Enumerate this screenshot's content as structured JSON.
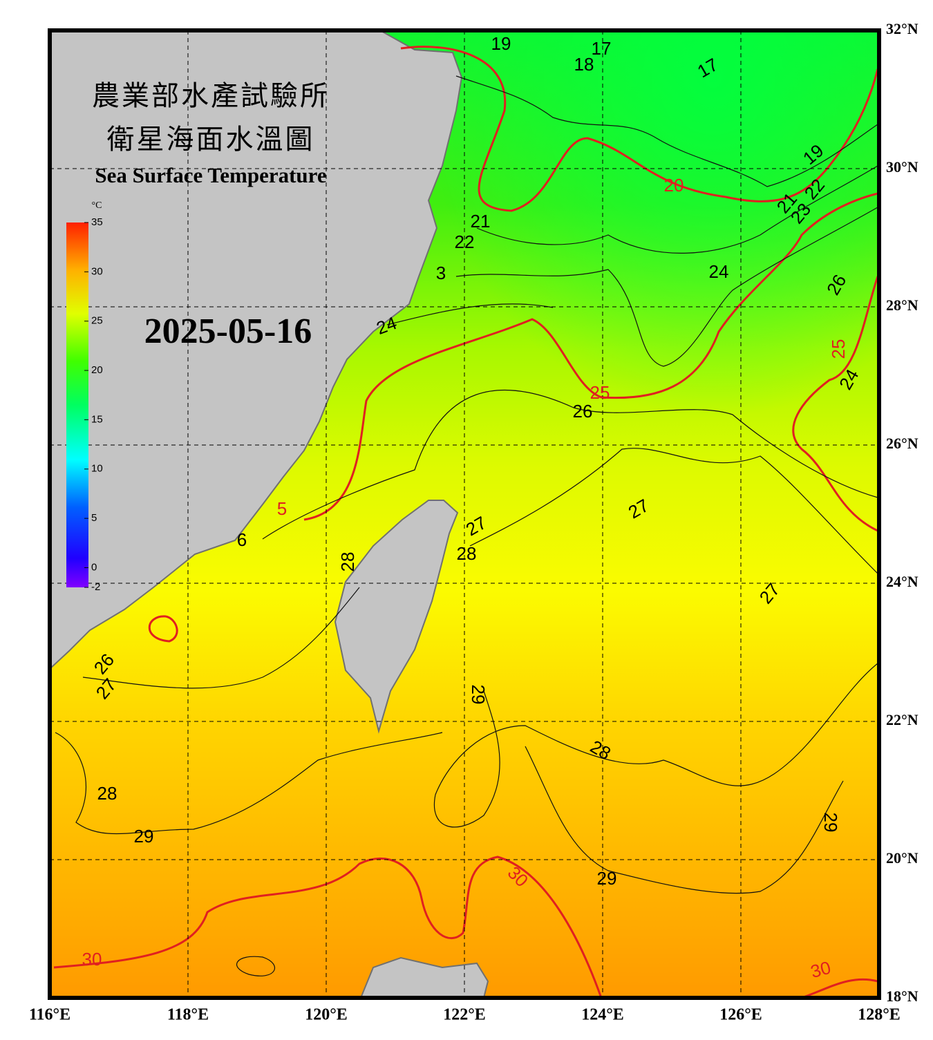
{
  "header": {
    "title_zh_1": "農業部水產試驗所",
    "title_zh_2": "衛星海面水溫圖",
    "title_en": "Sea Surface Temperature"
  },
  "date": "2025-05-16",
  "colorbar": {
    "unit": "°C",
    "range": [
      -2,
      35
    ],
    "ticks": [
      35,
      30,
      25,
      20,
      15,
      10,
      5,
      0,
      -2
    ]
  },
  "map": {
    "lon_ticks": [
      {
        "value": 116,
        "label": "116°E"
      },
      {
        "value": 118,
        "label": "118°E"
      },
      {
        "value": 120,
        "label": "120°E"
      },
      {
        "value": 122,
        "label": "122°E"
      },
      {
        "value": 124,
        "label": "124°E"
      },
      {
        "value": 126,
        "label": "126°E"
      },
      {
        "value": 128,
        "label": "128°E"
      }
    ],
    "lat_ticks": [
      {
        "value": 32,
        "label": "32°N"
      },
      {
        "value": 30,
        "label": "30°N"
      },
      {
        "value": 28,
        "label": "28°N"
      },
      {
        "value": 26,
        "label": "26°N"
      },
      {
        "value": 24,
        "label": "24°N"
      },
      {
        "value": 22,
        "label": "22°N"
      },
      {
        "value": 20,
        "label": "20°N"
      },
      {
        "value": 18,
        "label": "18°N"
      }
    ],
    "lonlim": [
      116,
      128
    ],
    "latlim": [
      18,
      32
    ],
    "contour_labels": [
      "19",
      "17",
      "18",
      "17",
      "19",
      "20",
      "21",
      "23",
      "22",
      "21",
      "22",
      "3",
      "24",
      "26",
      "24",
      "25",
      "25",
      "24",
      "26",
      "5",
      "27",
      "27",
      "6",
      "28",
      "28",
      "27",
      "26",
      "27",
      "29",
      "28",
      "28",
      "29",
      "29",
      "30",
      "29",
      "30",
      "30"
    ]
  }
}
